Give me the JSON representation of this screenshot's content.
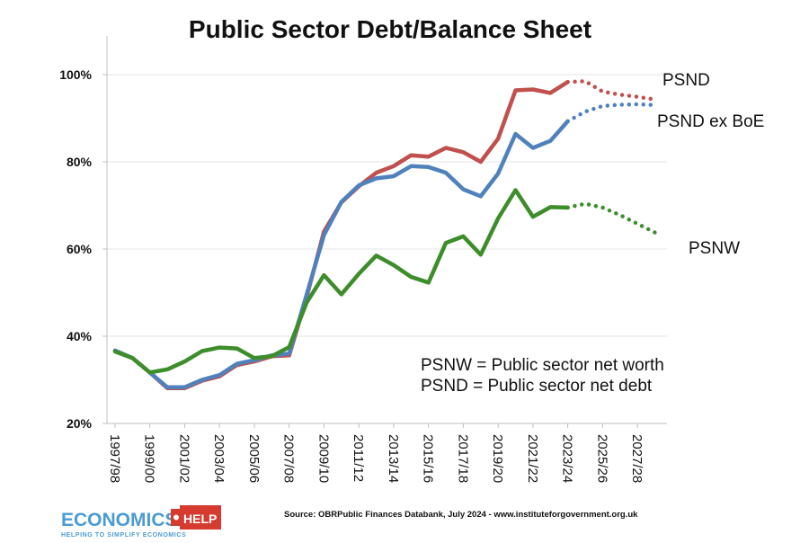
{
  "chart_data": {
    "type": "line",
    "title": "Public Sector Debt/Balance Sheet",
    "xlabel": "",
    "ylabel": "",
    "ylim": [
      20,
      100
    ],
    "yticks": [
      "20%",
      "40%",
      "60%",
      "80%",
      "100%"
    ],
    "ytick_values": [
      20,
      40,
      60,
      80,
      100
    ],
    "grid": "horizontal",
    "categories": [
      "1997/98",
      "1998/99",
      "1999/00",
      "2000/01",
      "2001/02",
      "2002/03",
      "2003/04",
      "2004/05",
      "2005/06",
      "2006/07",
      "2007/08",
      "2008/09",
      "2009/10",
      "2010/11",
      "2011/12",
      "2012/13",
      "2013/14",
      "2014/15",
      "2015/16",
      "2016/17",
      "2017/18",
      "2018/19",
      "2019/20",
      "2020/21",
      "2021/22",
      "2022/23",
      "2023/24",
      "2024/25",
      "2025/26",
      "2026/27",
      "2027/28",
      "2028/29"
    ],
    "tick_labels": [
      "1997/98",
      "1999/00",
      "2001/02",
      "2003/04",
      "2005/06",
      "2007/08",
      "2009/10",
      "2011/12",
      "2013/14",
      "2015/16",
      "2017/18",
      "2019/20",
      "2021/22",
      "2023/24",
      "2025/26",
      "2027/28"
    ],
    "tick_indices": [
      0,
      2,
      4,
      6,
      8,
      10,
      12,
      14,
      16,
      18,
      20,
      22,
      24,
      26,
      28,
      30
    ],
    "series": [
      {
        "name": "PSND",
        "color": "#c0504d",
        "values": [
          36.7,
          35.0,
          31.7,
          28.1,
          28.1,
          29.8,
          30.8,
          33.4,
          34.2,
          35.4,
          35.6,
          49.0,
          64.0,
          70.7,
          74.4,
          77.5,
          79.0,
          81.5,
          81.2,
          83.2,
          82.2,
          80.0,
          85.3,
          96.4,
          96.6,
          95.8,
          98.3,
          98.5,
          96.1,
          95.4,
          94.9,
          94.3
        ],
        "projection_from_index": 26
      },
      {
        "name": "PSND ex BoE",
        "color": "#4f81bd",
        "values": [
          36.7,
          35.0,
          31.7,
          28.3,
          28.3,
          30.0,
          31.1,
          33.7,
          34.5,
          35.6,
          36.0,
          49.5,
          63.2,
          70.8,
          74.6,
          76.2,
          76.7,
          79.0,
          78.8,
          77.5,
          73.7,
          72.1,
          77.3,
          86.4,
          83.2,
          84.8,
          89.3,
          91.5,
          92.8,
          93.1,
          93.2,
          93.0
        ],
        "projection_from_index": 26
      },
      {
        "name": "PSNW",
        "color": "#3e8d2b",
        "values": [
          36.5,
          35.0,
          31.7,
          32.4,
          34.2,
          36.6,
          37.4,
          37.2,
          35.0,
          35.4,
          37.5,
          47.7,
          54.0,
          49.6,
          54.3,
          58.5,
          56.3,
          53.6,
          52.3,
          61.4,
          62.9,
          58.7,
          67.0,
          73.5,
          67.4,
          69.6,
          69.5,
          70.4,
          69.5,
          67.8,
          65.8,
          63.8
        ],
        "projection_from_index": 26
      }
    ],
    "annotations": [
      "PSNW = Public sector net worth",
      "PSND = Public sector net debt"
    ]
  },
  "source": "Source:  OBRPublic Finances Databank, July 2024 - www.instituteforgovernment.org.uk",
  "logo": {
    "word": "ECONOMICS",
    "badge": "HELP",
    "tagline": "HELPING TO SIMPLIFY ECONOMICS",
    "colors": {
      "word": "#4a9bd4",
      "badge": "#d63b2f"
    }
  }
}
